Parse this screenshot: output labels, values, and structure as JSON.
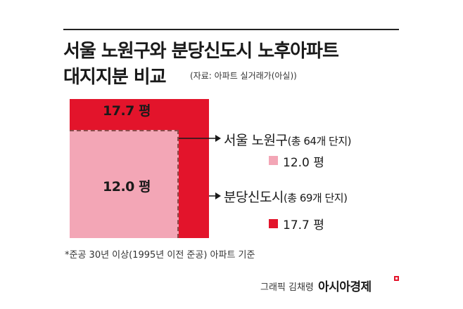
{
  "title": {
    "line1": "서울 노원구와 분당신도시 노후아파트",
    "line2": "대지지분 비교",
    "source": "(자료: 아파트 실거래가(아실))"
  },
  "diagram": {
    "outer_square": {
      "label": "17.7 평",
      "value": 17.7,
      "color": "#e3142b"
    },
    "inner_square": {
      "label": "12.0 평",
      "value": 12.0,
      "color": "#f3a6b6"
    }
  },
  "legend": [
    {
      "name": "서울 노원구",
      "detail": "(총 64개 단지)",
      "value_label": "12.0 평",
      "color": "#f3a6b6"
    },
    {
      "name": "분당신도시",
      "detail": "(총 69개 단지)",
      "value_label": "17.7 평",
      "color": "#e3142b"
    }
  ],
  "footnote": "*준공 30년 이상(1995년 이전 준공) 아파트 기준",
  "credit": {
    "byline": "그래픽 김채령",
    "brand": "아시아경제"
  }
}
